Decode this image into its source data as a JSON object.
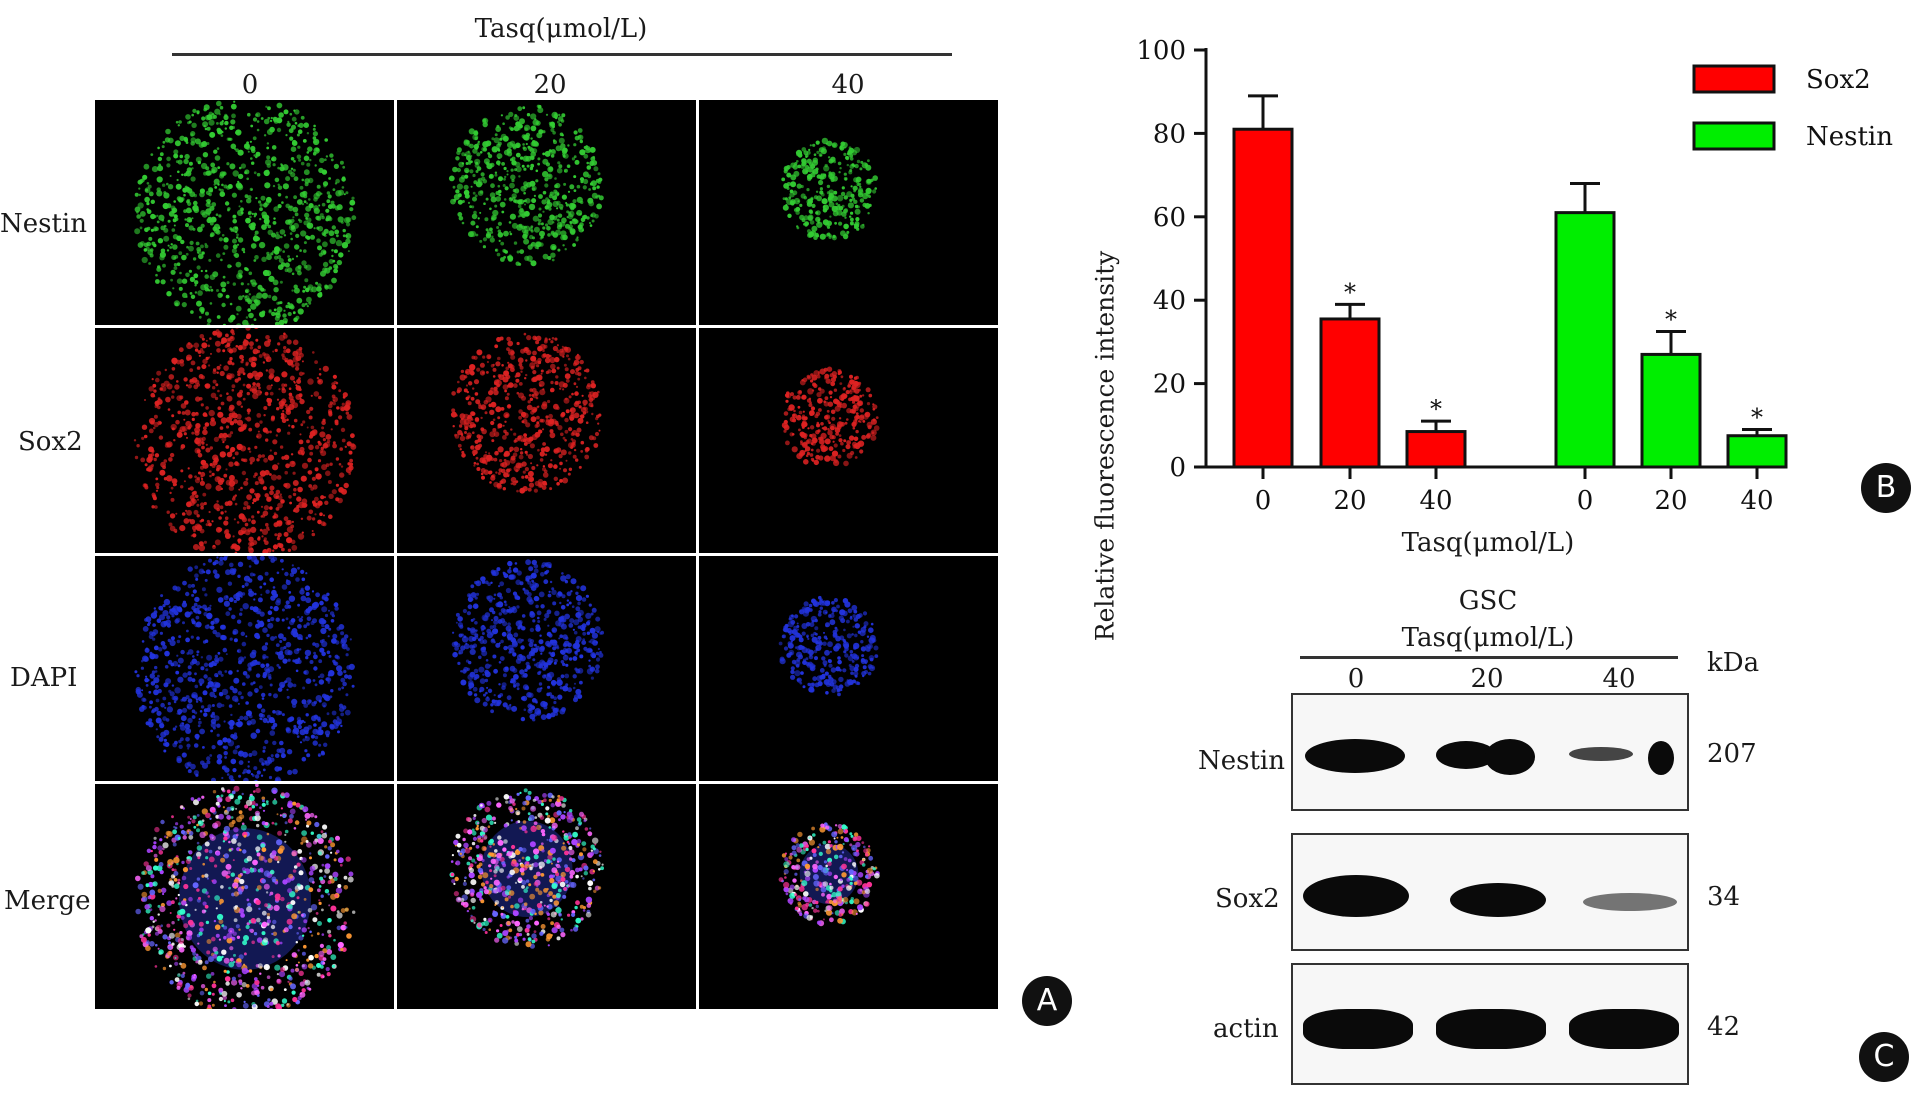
{
  "panel_a": {
    "header_title": "Tasq(μmol/L)",
    "columns": [
      "0",
      "20",
      "40"
    ],
    "rows": [
      "Nestin",
      "Sox2",
      "DAPI",
      "Merge"
    ],
    "badge": "A",
    "channel_colors": {
      "Nestin": "#33cc33",
      "Sox2": "#dd2222",
      "DAPI": "#2233dd"
    },
    "spot_scale": [
      1.0,
      0.62,
      0.32
    ]
  },
  "chart_data": {
    "type": "bar",
    "ylabel": "Relative fluorescence intensity",
    "xlabel": "Tasq(μmol/L)",
    "ylim": [
      0,
      100
    ],
    "yticks": [
      0,
      20,
      40,
      60,
      80,
      100
    ],
    "categories": [
      "0",
      "20",
      "40"
    ],
    "legend_position": "top-right",
    "series": [
      {
        "name": "Sox2",
        "color": "#ff0000",
        "values": [
          81,
          35.5,
          8.5
        ],
        "errors": [
          8,
          3.5,
          2.5
        ],
        "marks": [
          "",
          "*",
          "*"
        ]
      },
      {
        "name": "Nestin",
        "color": "#00ee00",
        "values": [
          61,
          27,
          7.5
        ],
        "errors": [
          7,
          5.5,
          1.5
        ],
        "marks": [
          "",
          "*",
          "*"
        ]
      }
    ],
    "badge": "B"
  },
  "panel_c": {
    "title_line1": "GSC",
    "title_line2": "Tasq(μmol/L)",
    "unit": "kDa",
    "columns": [
      "0",
      "20",
      "40"
    ],
    "blots": [
      {
        "label": "Nestin",
        "kda": "207"
      },
      {
        "label": "Sox2",
        "kda": "34"
      },
      {
        "label": "actin",
        "kda": "42"
      }
    ],
    "badge": "C"
  }
}
